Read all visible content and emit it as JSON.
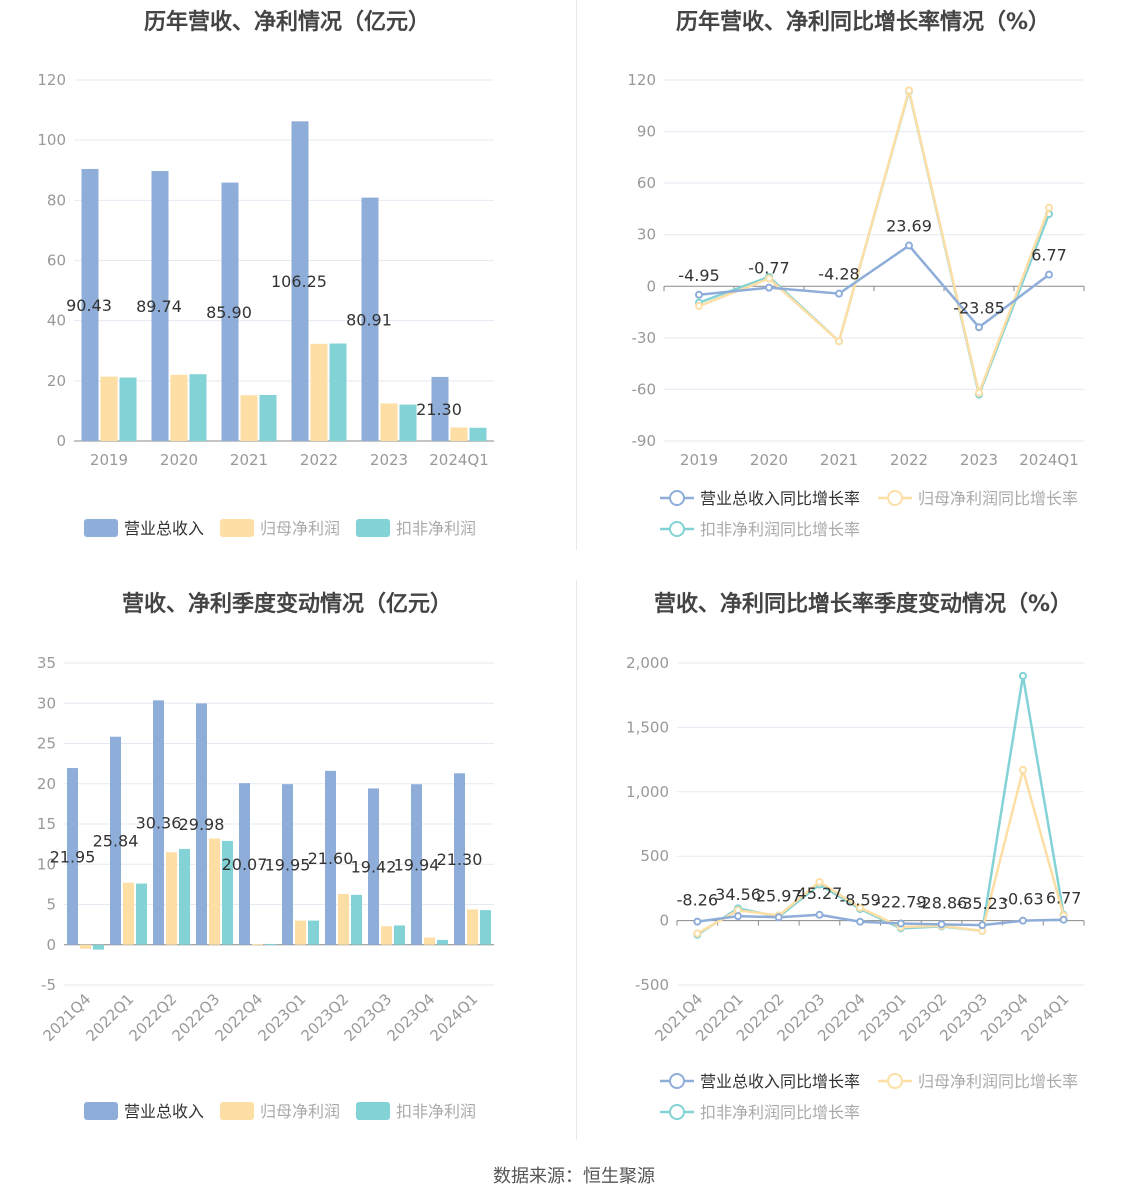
{
  "source_label": "数据来源：恒生聚源",
  "colors": {
    "revenue": "#8eadd9",
    "net": "#fddfa6",
    "deducted": "#82d2d6",
    "axis": "#999999",
    "grid": "#e6e9f2",
    "zero": "#888888"
  },
  "chart_data": [
    {
      "type": "bar",
      "title": "历年营收、净利情况（亿元）",
      "categories": [
        "2019",
        "2020",
        "2021",
        "2022",
        "2023",
        "2024Q1"
      ],
      "ylim": [
        0,
        120
      ],
      "yticks": [
        0,
        20,
        40,
        60,
        80,
        100,
        120
      ],
      "grid": true,
      "legend_position": "bottom",
      "series": [
        {
          "name": "营业总收入",
          "values": [
            90.43,
            89.74,
            85.9,
            106.25,
            80.91,
            21.3
          ],
          "labels": [
            "90.43",
            "89.74",
            "85.90",
            "106.25",
            "80.91",
            "21.30"
          ]
        },
        {
          "name": "归母净利润",
          "values": [
            21.4,
            22.0,
            15.2,
            32.3,
            12.5,
            4.5
          ]
        },
        {
          "name": "扣非净利润",
          "values": [
            21.1,
            22.2,
            15.3,
            32.4,
            12.1,
            4.4
          ]
        }
      ]
    },
    {
      "type": "line",
      "title": "历年营收、净利同比增长率情况（%）",
      "categories": [
        "2019",
        "2020",
        "2021",
        "2022",
        "2023",
        "2024Q1"
      ],
      "ylim": [
        -90,
        120
      ],
      "yticks": [
        -90,
        -60,
        -30,
        0,
        30,
        60,
        90,
        120
      ],
      "grid": true,
      "legend_position": "bottom",
      "series": [
        {
          "name": "营业总收入同比增长率",
          "values": [
            -4.95,
            -0.77,
            -4.28,
            23.69,
            -23.85,
            6.77
          ],
          "labels": [
            "-4.95",
            "-0.77",
            "-4.28",
            "23.69",
            "-23.85",
            "6.77"
          ]
        },
        {
          "name": "归母净利润同比增长率",
          "values": [
            -11.5,
            4.5,
            -32.0,
            114.0,
            -62.0,
            45.7
          ]
        },
        {
          "name": "扣非净利润同比增长率",
          "values": [
            -9.5,
            5.5,
            -32.0,
            113.5,
            -63.0,
            42.0
          ]
        }
      ]
    },
    {
      "type": "bar",
      "title": "营收、净利季度变动情况（亿元）",
      "categories": [
        "2021Q4",
        "2022Q1",
        "2022Q2",
        "2022Q3",
        "2022Q4",
        "2023Q1",
        "2023Q2",
        "2023Q3",
        "2023Q4",
        "2024Q1"
      ],
      "ylim": [
        -5,
        35
      ],
      "yticks": [
        -5,
        0,
        5,
        10,
        15,
        20,
        25,
        30,
        35
      ],
      "grid": true,
      "legend_position": "bottom",
      "series": [
        {
          "name": "营业总收入",
          "values": [
            21.95,
            25.84,
            30.36,
            29.98,
            20.07,
            19.95,
            21.6,
            19.42,
            19.94,
            21.3
          ],
          "labels": [
            "21.95",
            "25.84",
            "30.36",
            "29.98",
            "20.07",
            "19.95",
            "21.60",
            "19.42",
            "19.94",
            "21.30"
          ]
        },
        {
          "name": "归母净利润",
          "values": [
            -0.5,
            7.7,
            11.5,
            13.2,
            0.1,
            3.0,
            6.3,
            2.3,
            0.9,
            4.4
          ]
        },
        {
          "name": "扣非净利润",
          "values": [
            -0.6,
            7.6,
            11.9,
            12.9,
            0.1,
            3.0,
            6.2,
            2.4,
            0.6,
            4.3
          ]
        }
      ]
    },
    {
      "type": "line",
      "title": "营收、净利同比增长率季度变动情况（%）",
      "categories": [
        "2021Q4",
        "2022Q1",
        "2022Q2",
        "2022Q3",
        "2022Q4",
        "2023Q1",
        "2023Q2",
        "2023Q3",
        "2023Q4",
        "2024Q1"
      ],
      "ylim": [
        -500,
        2000
      ],
      "yticks": [
        -500,
        0,
        500,
        1000,
        1500,
        2000
      ],
      "ytick_labels": [
        "-500",
        "0",
        "500",
        "1,000",
        "1,500",
        "2,000"
      ],
      "grid": true,
      "legend_position": "bottom",
      "series": [
        {
          "name": "营业总收入同比增长率",
          "values": [
            -8.26,
            34.56,
            25.97,
            45.27,
            -8.59,
            -22.79,
            -28.86,
            -35.23,
            -0.63,
            6.77
          ],
          "labels": [
            "-8.26",
            "34.56",
            "25.97",
            "45.27",
            "-8.59",
            "-22.79",
            "-28.86",
            "-35.23",
            "-0.63",
            "6.77"
          ]
        },
        {
          "name": "归母净利润同比增长率",
          "values": [
            -100,
            80,
            40,
            300,
            100,
            -50,
            -40,
            -80,
            1170,
            40
          ]
        },
        {
          "name": "扣非净利润同比增长率",
          "values": [
            -110,
            95,
            30,
            280,
            90,
            -60,
            -45,
            -80,
            1900,
            45
          ]
        }
      ]
    }
  ]
}
